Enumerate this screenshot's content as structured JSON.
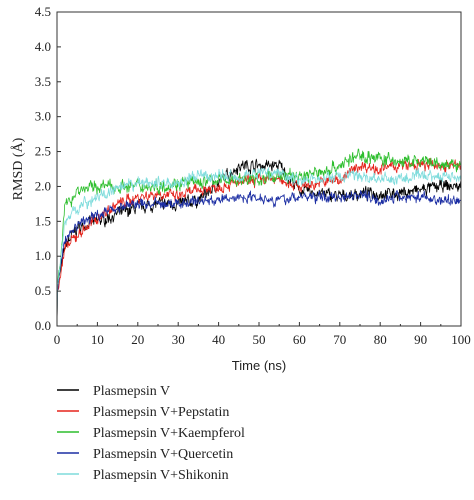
{
  "chart_data": {
    "type": "line",
    "xlabel": "Time (ns)",
    "ylabel": "RMSD (Å)",
    "xlim": [
      0,
      100
    ],
    "ylim": [
      0,
      4.5
    ],
    "x_ticks": [
      0,
      10,
      20,
      30,
      40,
      50,
      60,
      70,
      80,
      90,
      100
    ],
    "y_ticks": [
      "0.0",
      "0.5",
      "1.0",
      "1.5",
      "2.0",
      "2.5",
      "3.0",
      "3.5",
      "4.0",
      "4.5"
    ],
    "grid": false,
    "legend_position": "bottom",
    "x": [
      0,
      2,
      5,
      10,
      15,
      20,
      25,
      30,
      35,
      40,
      45,
      50,
      55,
      60,
      65,
      70,
      75,
      80,
      85,
      90,
      95,
      100
    ],
    "series": [
      {
        "name": "Plasmepsin V",
        "color": "#000000",
        "values": [
          0.5,
          1.15,
          1.4,
          1.5,
          1.6,
          1.7,
          1.75,
          1.75,
          1.8,
          2.05,
          2.3,
          2.3,
          2.3,
          1.95,
          1.9,
          1.85,
          1.9,
          1.9,
          1.9,
          1.95,
          2.0,
          2.0
        ]
      },
      {
        "name": "Plasmepsin V+Pepstatin",
        "color": "#e5231b",
        "values": [
          0.5,
          1.1,
          1.3,
          1.55,
          1.75,
          1.85,
          1.9,
          1.85,
          1.95,
          2.0,
          2.05,
          2.1,
          2.1,
          2.0,
          2.05,
          2.1,
          2.3,
          2.25,
          2.3,
          2.3,
          2.3,
          2.3
        ]
      },
      {
        "name": "Plasmepsin V+Kaempferol",
        "color": "#2dbe2d",
        "values": [
          0.5,
          1.7,
          1.95,
          2.0,
          2.0,
          2.0,
          2.0,
          2.05,
          2.05,
          2.1,
          2.1,
          2.1,
          2.15,
          2.15,
          2.2,
          2.3,
          2.45,
          2.4,
          2.35,
          2.35,
          2.3,
          2.3
        ]
      },
      {
        "name": "Plasmepsin V+Quercetin",
        "color": "#1c2ea3",
        "values": [
          0.5,
          1.25,
          1.45,
          1.6,
          1.7,
          1.75,
          1.75,
          1.75,
          1.8,
          1.8,
          1.85,
          1.85,
          1.8,
          1.85,
          1.85,
          1.85,
          1.9,
          1.8,
          1.85,
          1.85,
          1.8,
          1.8
        ]
      },
      {
        "name": "Plasmepsin V+Shikonin",
        "color": "#7fdcdc",
        "values": [
          0.5,
          1.5,
          1.7,
          1.85,
          1.95,
          2.05,
          2.05,
          2.05,
          2.15,
          2.15,
          2.15,
          2.2,
          2.2,
          2.1,
          2.1,
          2.15,
          2.15,
          2.1,
          2.1,
          2.15,
          2.15,
          2.15
        ]
      }
    ]
  }
}
